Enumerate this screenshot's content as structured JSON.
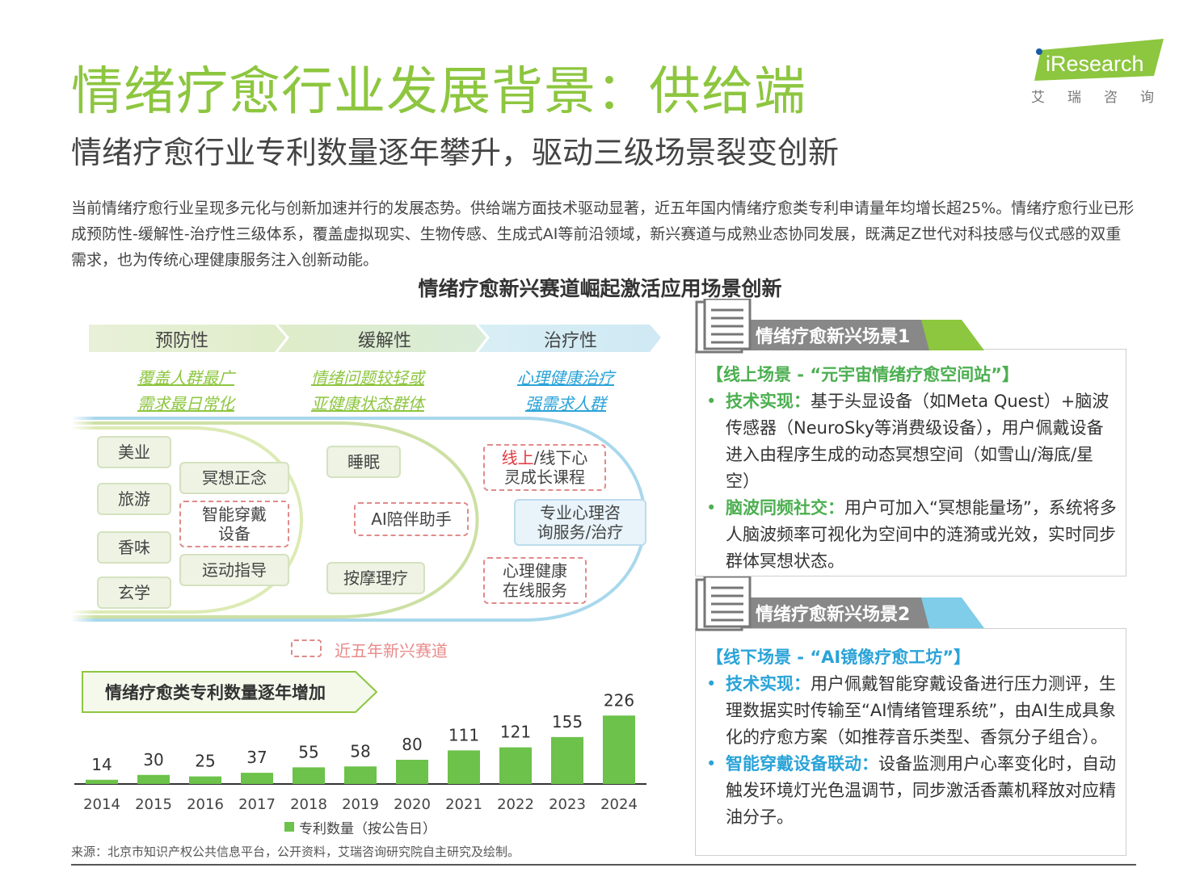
{
  "header": {
    "title": "情绪疗愈行业发展背景：供给端",
    "subtitle": "情绪疗愈行业专利数量逐年攀升，驱动三级场景裂变创新"
  },
  "logo": {
    "brand": "iResearch",
    "cn": "艾瑞咨询",
    "accent_color": "#8dc63f"
  },
  "intro": "当前情绪疗愈行业呈现多元化与创新加速并行的发展态势。供给端方面技术驱动显著，近五年国内情绪疗愈类专利申请量年均增长超25%。情绪疗愈行业已形成预防性-缓解性-治疗性三级体系，覆盖虚拟现实、生物传感、生成式AI等前沿领域，新兴赛道与成熟业态协同发展，既满足Z世代对科技感与仪式感的双重需求，也为传统心理健康服务注入创新动能。",
  "section_title": "情绪疗愈新兴赛道崛起激活应用场景创新",
  "stages": [
    {
      "label": "预防性",
      "desc1": "覆盖人群最广",
      "desc2": "需求最日常化",
      "color": "#8dc63f"
    },
    {
      "label": "缓解性",
      "desc1": "情绪问题较轻或",
      "desc2": "亚健康状态群体",
      "color": "#8dc63f"
    },
    {
      "label": "治疗性",
      "desc1": "心理健康治疗",
      "desc2": "强需求人群",
      "color": "#2aa3d8"
    }
  ],
  "tags": {
    "meiye": "美业",
    "lvyou": "旅游",
    "xiangwei": "香味",
    "xuanxue": "玄学",
    "mingxiang": "冥想正念",
    "wearable": "智能穿戴\n设备",
    "yundong": "运动指导",
    "shuimian": "睡眠",
    "ai_companion": "AI陪伴助手",
    "anmo": "按摩理疗",
    "course_red": "线上",
    "course_rest": "/线下心\n灵成长课程",
    "pro_service": "专业心理咨\n询服务/治疗",
    "online_service": "心理健康\n在线服务"
  },
  "legend": "近五年新兴赛道",
  "chart_title": "情绪疗愈类专利数量逐年增加",
  "chart_data": {
    "type": "bar",
    "title": "情绪疗愈类专利数量逐年增加",
    "categories": [
      "2014",
      "2015",
      "2016",
      "2017",
      "2018",
      "2019",
      "2020",
      "2021",
      "2022",
      "2023",
      "2024"
    ],
    "series": [
      {
        "name": "专利数量（按公告日）",
        "values": [
          14,
          30,
          25,
          37,
          55,
          58,
          80,
          111,
          121,
          155,
          226
        ],
        "color": "#6cc24a"
      }
    ],
    "legend": "专利数量（按公告日）",
    "xlabel": "",
    "ylabel": "",
    "ylim": [
      0,
      400
    ]
  },
  "scenario1": {
    "header": "情绪疗愈新兴场景1",
    "title": "【线上场景 - “元宇宙情绪疗愈空间站”】",
    "b1_label": "技术实现：",
    "b1_text": "基于头显设备（如Meta Quest）+脑波传感器（NeuroSky等消费级设备），用户佩戴设备进入由程序生成的动态冥想空间（如雪山/海底/星空）",
    "b2_label": "脑波同频社交：",
    "b2_text": "用户可加入“冥想能量场”，系统将多人脑波频率可视化为空间中的涟漪或光效，实时同步群体冥想状态。",
    "color": "#4caf50"
  },
  "scenario2": {
    "header": "情绪疗愈新兴场景2",
    "title": "【线下场景 - “AI镜像疗愈工坊”】",
    "b1_label": "技术实现：",
    "b1_text": "用户佩戴智能穿戴设备进行压力测评，生理数据实时传输至“AI情绪管理系统”，由AI生成具象化的疗愈方案（如推荐音乐类型、香氛分子组合）。",
    "b2_label": "智能穿戴设备联动：",
    "b2_text": "设备监测用户心率变化时，自动触发环境灯光色温调节，同步激活香薰机释放对应精油分子。",
    "color": "#2aa3d8"
  },
  "source": "来源：北京市知识产权公共信息平台，公开资料，艾瑞咨询研究院自主研究及绘制。"
}
